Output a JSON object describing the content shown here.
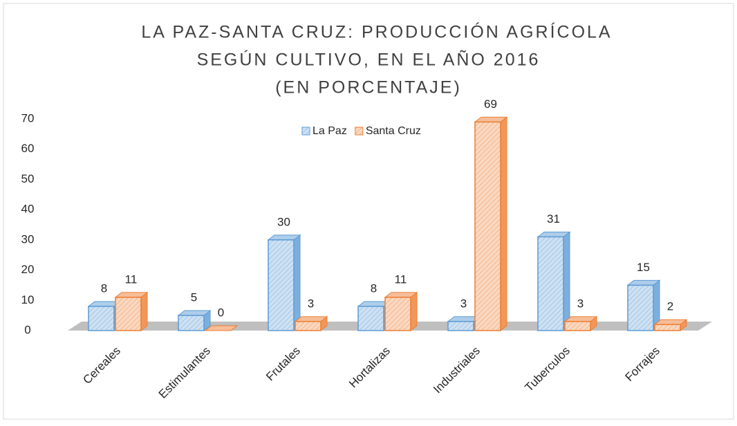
{
  "chart_data": {
    "type": "bar",
    "title": [
      "LA PAZ-SANTA CRUZ: PRODUCCIÓN AGRÍCOLA",
      "SEGÚN CULTIVO, EN EL AÑO 2016",
      "(EN PORCENTAJE)"
    ],
    "categories": [
      "Cereales",
      "Estimulantes",
      "Frutales",
      "Hortalizas",
      "Industriales",
      "Tuberculos",
      "Forrajes"
    ],
    "series": [
      {
        "name": "La Paz",
        "color": "#5b9bd5",
        "values": [
          8,
          5,
          30,
          8,
          3,
          31,
          15
        ]
      },
      {
        "name": "Santa Cruz",
        "color": "#ed7d31",
        "values": [
          11,
          0,
          3,
          11,
          69,
          3,
          2
        ]
      }
    ],
    "ylim": [
      0,
      70
    ],
    "yticks": [
      0,
      10,
      20,
      30,
      40,
      50,
      60,
      70
    ],
    "grid": false,
    "legend": "top"
  }
}
